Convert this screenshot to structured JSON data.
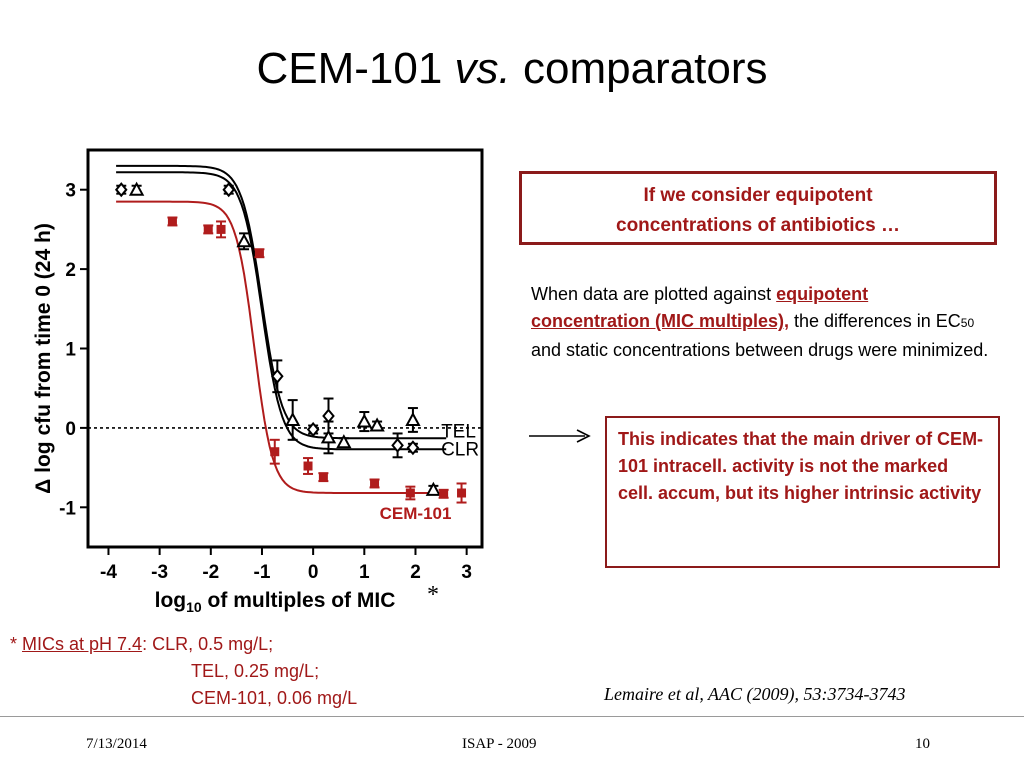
{
  "slide": {
    "title_main": "CEM-101 ",
    "title_italic": "vs.",
    "title_rest": " comparators"
  },
  "box1": {
    "line1": "If we consider equipotent",
    "line2": "concentrations of antibiotics …"
  },
  "paragraph": {
    "text1": "When data are plotted against ",
    "highlight": "equipotent concentration (MIC multiples),",
    "text2": " the differences in EC",
    "subscript": "50",
    "text3": " and static concentrations between drugs were minimized."
  },
  "box2": {
    "text": "This indicates that the main driver of CEM-101 intracell. activity is not the marked cell. accum, but its higher intrinsic activity"
  },
  "mics": {
    "star": "* ",
    "label": "MICs at pH 7.4",
    "colon": ": ",
    "line1": "CLR, 0.5 mg/L;",
    "line2": "TEL, 0.25 mg/L;",
    "line3": "CEM-101, 0.06 mg/L"
  },
  "citation": "Lemaire et al, AAC (2009), 53:3734-3743",
  "footer": {
    "date": "7/13/2014",
    "event": "ISAP - 2009",
    "page": "10"
  },
  "colors": {
    "accent": "#a01818",
    "cem101": "#b01c1c",
    "comparators": "#000000"
  },
  "chart_data": {
    "type": "scatter",
    "xlabel_pre": "log",
    "xlabel_sub": "10",
    "xlabel_post": " of multiples of MIC",
    "xlabel_mark": "*",
    "ylabel": "Δ log cfu from time 0 (24 h)",
    "xlim": [
      -4.4,
      3.3
    ],
    "ylim": [
      -1.5,
      3.5
    ],
    "xticks": [
      -4,
      -3,
      -2,
      -1,
      0,
      1,
      2,
      3
    ],
    "yticks": [
      -1,
      0,
      1,
      2,
      3
    ],
    "reference_line_y": 0,
    "series": [
      {
        "name": "TEL",
        "color": "#000000",
        "marker": "diamond",
        "points": [
          {
            "x": -3.75,
            "y": 3.0,
            "err": 0.05
          },
          {
            "x": -1.65,
            "y": 3.0,
            "err": 0.05
          },
          {
            "x": -0.7,
            "y": 0.65,
            "err": 0.2
          },
          {
            "x": 0.0,
            "y": -0.02,
            "err": 0.05
          },
          {
            "x": 0.3,
            "y": 0.15,
            "err": 0.22
          },
          {
            "x": 1.65,
            "y": -0.22,
            "err": 0.15
          },
          {
            "x": 1.95,
            "y": -0.25,
            "err": 0.05
          }
        ],
        "curve": {
          "top": 3.22,
          "bottom": -0.27,
          "ec50": -1.0,
          "hill": 1.1
        }
      },
      {
        "name": "CLR",
        "color": "#000000",
        "marker": "triangle",
        "points": [
          {
            "x": -3.45,
            "y": 3.0,
            "err": 0.05
          },
          {
            "x": -1.35,
            "y": 2.35,
            "err": 0.1
          },
          {
            "x": -0.4,
            "y": 0.1,
            "err": 0.25
          },
          {
            "x": 0.3,
            "y": -0.12,
            "err": 0.2
          },
          {
            "x": 0.6,
            "y": -0.18,
            "err": 0.05
          },
          {
            "x": 1.0,
            "y": 0.08,
            "err": 0.12
          },
          {
            "x": 1.25,
            "y": 0.03,
            "err": 0.05
          },
          {
            "x": 1.95,
            "y": 0.1,
            "err": 0.15
          },
          {
            "x": 2.35,
            "y": -0.78,
            "err": 0.05
          }
        ],
        "curve": {
          "top": 3.3,
          "bottom": -0.13,
          "ec50": -1.0,
          "hill": 1.1
        }
      },
      {
        "name": "CEM-101",
        "color": "#b01c1c",
        "marker": "square",
        "points": [
          {
            "x": -2.75,
            "y": 2.6,
            "err": 0.05
          },
          {
            "x": -2.05,
            "y": 2.5,
            "err": 0.05
          },
          {
            "x": -1.8,
            "y": 2.5,
            "err": 0.1
          },
          {
            "x": -1.05,
            "y": 2.2,
            "err": 0.05
          },
          {
            "x": -0.75,
            "y": -0.3,
            "err": 0.15
          },
          {
            "x": -0.1,
            "y": -0.48,
            "err": 0.1
          },
          {
            "x": 0.2,
            "y": -0.62,
            "err": 0.05
          },
          {
            "x": 1.2,
            "y": -0.7,
            "err": 0.05
          },
          {
            "x": 1.9,
            "y": -0.82,
            "err": 0.08
          },
          {
            "x": 2.55,
            "y": -0.83,
            "err": 0.05
          },
          {
            "x": 2.9,
            "y": -0.82,
            "err": 0.12
          }
        ],
        "curve": {
          "top": 2.85,
          "bottom": -0.82,
          "ec50": -1.15,
          "hill": 1.2
        }
      }
    ],
    "curve_labels": [
      {
        "series": "TEL",
        "x": 2.5,
        "y": -0.12
      },
      {
        "series": "CLR",
        "x": 2.5,
        "y": -0.35
      },
      {
        "series": "CEM-101",
        "x": 1.3,
        "y": -1.15
      }
    ]
  }
}
